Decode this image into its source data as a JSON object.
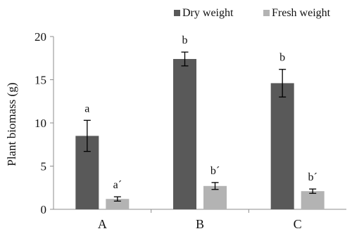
{
  "chart_data": {
    "type": "bar",
    "title": "",
    "xlabel": "",
    "ylabel": "Plant biomass (g)",
    "ylim": [
      0,
      20
    ],
    "yticks": [
      0,
      5,
      10,
      15,
      20
    ],
    "grid": false,
    "legend_position": "top-right",
    "categories": [
      "A",
      "B",
      "C"
    ],
    "series": [
      {
        "name": "Dry weight",
        "color": "#595959",
        "values": [
          8.5,
          17.4,
          14.6
        ],
        "errors": [
          1.8,
          0.8,
          1.6
        ],
        "labels": [
          "a",
          "b",
          "b"
        ]
      },
      {
        "name": "Fresh weight",
        "color": "#b3b3b3",
        "values": [
          1.2,
          2.7,
          2.1
        ],
        "errors": [
          0.25,
          0.4,
          0.25
        ],
        "labels": [
          "a´",
          "b´",
          "b´"
        ]
      }
    ],
    "error_bar_color": "#000000"
  }
}
